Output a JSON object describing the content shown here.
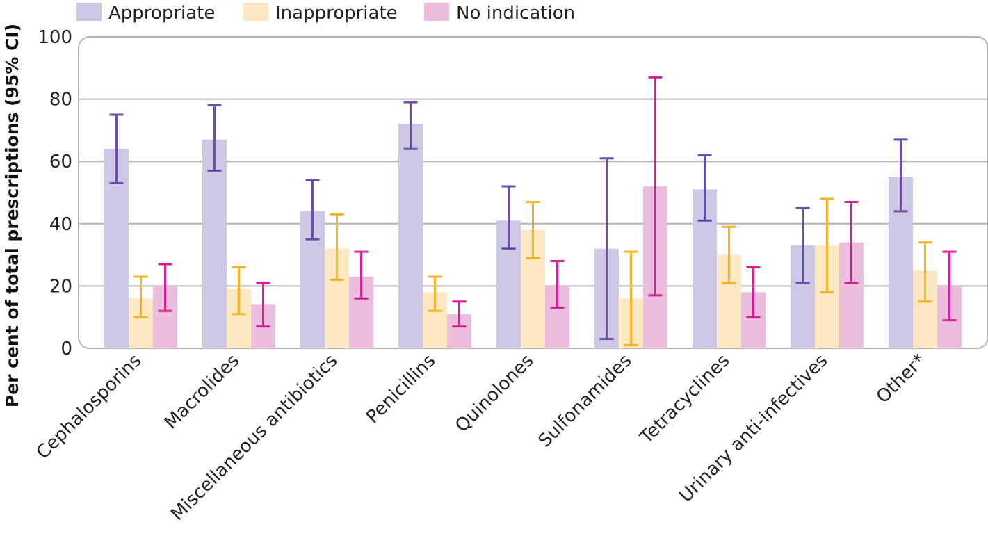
{
  "chart_data": {
    "type": "bar",
    "ylabel": "Per cent of total prescriptions (95% CI)",
    "ylim": [
      0,
      100
    ],
    "yticks": [
      0,
      20,
      40,
      60,
      80,
      100
    ],
    "grid": true,
    "legend_position": "top-left",
    "categories": [
      "Cephalosporins",
      "Macrolides",
      "Miscellaneous antibiotics",
      "Penicillins",
      "Quinolones",
      "Sulfonamides",
      "Tetracyclines",
      "Urinary anti-infectives",
      "Other*"
    ],
    "series": [
      {
        "name": "Appropriate",
        "bar_color": "#cdc8e6",
        "error_color": "#6a4ea8",
        "values": [
          64,
          67,
          44,
          72,
          41,
          32,
          51,
          33,
          55
        ],
        "ci_low": [
          53,
          57,
          35,
          64,
          32,
          3,
          41,
          21,
          44
        ],
        "ci_high": [
          75,
          78,
          54,
          79,
          52,
          61,
          62,
          45,
          67
        ]
      },
      {
        "name": "Inappropriate",
        "bar_color": "#fde8c4",
        "error_color": "#f5b223",
        "values": [
          16,
          19,
          32,
          18,
          38,
          16,
          30,
          33,
          25
        ],
        "ci_low": [
          10,
          11,
          22,
          12,
          29,
          1,
          21,
          18,
          15
        ],
        "ci_high": [
          23,
          26,
          43,
          23,
          47,
          31,
          39,
          48,
          34
        ]
      },
      {
        "name": "No indication",
        "bar_color": "#ecbddc",
        "error_color": "#d61f93",
        "values": [
          20,
          14,
          23,
          11,
          20,
          52,
          18,
          34,
          20
        ],
        "ci_low": [
          12,
          7,
          16,
          7,
          13,
          17,
          10,
          21,
          9
        ],
        "ci_high": [
          27,
          21,
          31,
          15,
          28,
          87,
          26,
          47,
          31
        ]
      }
    ]
  }
}
